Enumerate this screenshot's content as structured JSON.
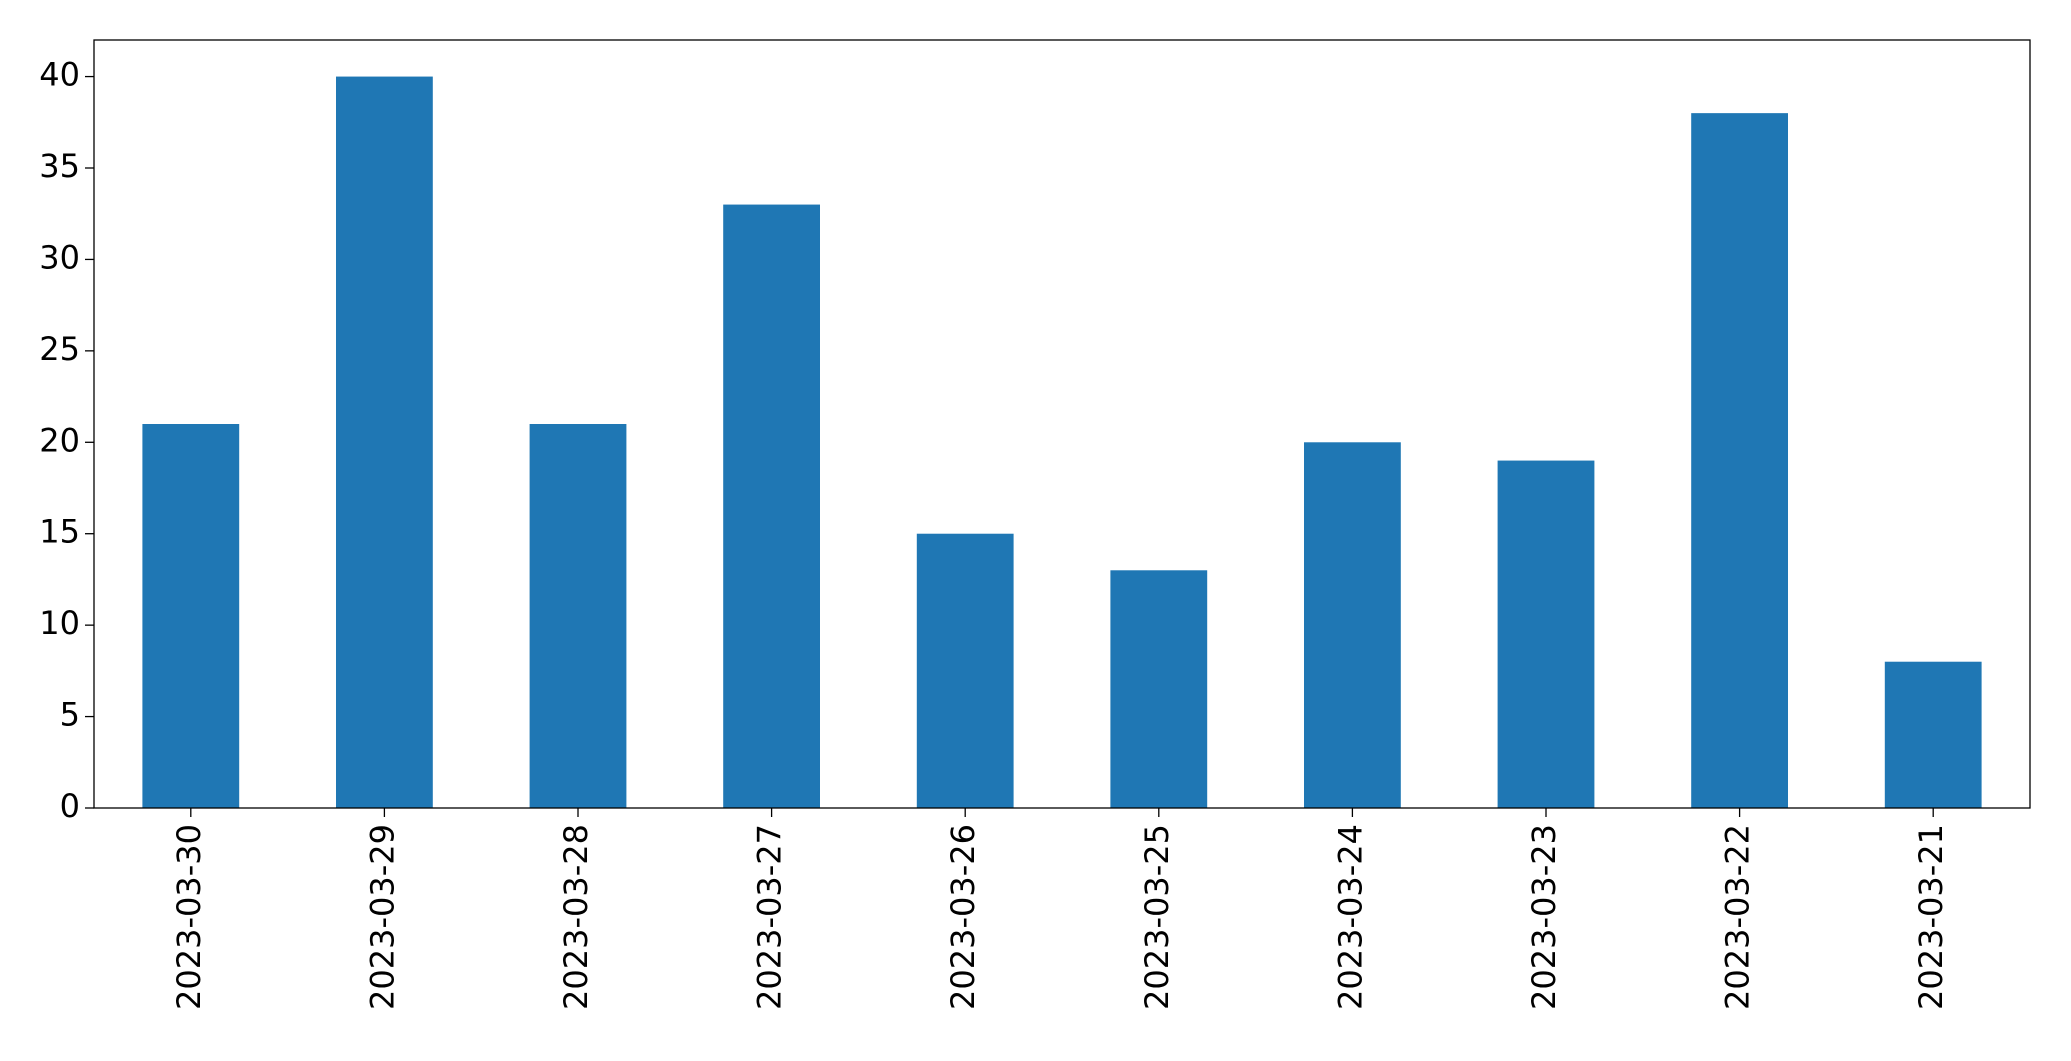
{
  "chart_data": {
    "type": "bar",
    "categories": [
      "2023-03-30",
      "2023-03-29",
      "2023-03-28",
      "2023-03-27",
      "2023-03-26",
      "2023-03-25",
      "2023-03-24",
      "2023-03-23",
      "2023-03-22",
      "2023-03-21"
    ],
    "values": [
      21,
      40,
      21,
      33,
      15,
      13,
      20,
      19,
      38,
      8
    ],
    "color": "#1f77b4",
    "ylim": [
      0,
      42
    ],
    "yticks": [
      0,
      5,
      10,
      15,
      20,
      25,
      30,
      35,
      40
    ],
    "grid": false
  }
}
